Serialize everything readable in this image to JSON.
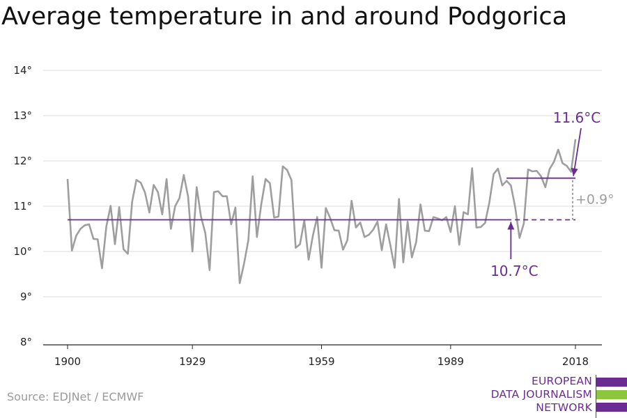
{
  "chart_data": {
    "type": "line",
    "title": "Average temperature in and around Podgorica",
    "xlabel": "",
    "ylabel": "",
    "xlim": [
      1900,
      2018
    ],
    "ylim": [
      8,
      14
    ],
    "x_ticks": [
      1900,
      1929,
      1959,
      1989,
      2018
    ],
    "y_ticks": [
      "8°",
      "9°",
      "10°",
      "11°",
      "12°",
      "13°",
      "14°"
    ],
    "y_tick_values": [
      8,
      9,
      10,
      11,
      12,
      13,
      14
    ],
    "grid": true,
    "series": [
      {
        "color": "#9e9e9e",
        "x": [
          1900,
          1901,
          1902,
          1903,
          1904,
          1905,
          1906,
          1907,
          1908,
          1909,
          1910,
          1911,
          1912,
          1913,
          1914,
          1915,
          1916,
          1917,
          1918,
          1919,
          1920,
          1921,
          1922,
          1923,
          1924,
          1925,
          1926,
          1927,
          1928,
          1929,
          1930,
          1931,
          1932,
          1933,
          1934,
          1935,
          1936,
          1937,
          1938,
          1939,
          1940,
          1941,
          1942,
          1943,
          1944,
          1945,
          1946,
          1947,
          1948,
          1949,
          1950,
          1951,
          1952,
          1953,
          1954,
          1955,
          1956,
          1957,
          1958,
          1959,
          1960,
          1961,
          1962,
          1963,
          1964,
          1965,
          1966,
          1967,
          1968,
          1969,
          1970,
          1971,
          1972,
          1973,
          1974,
          1975,
          1976,
          1977,
          1978,
          1979,
          1980,
          1981,
          1982,
          1983,
          1984,
          1985,
          1986,
          1987,
          1988,
          1989,
          1990,
          1991,
          1992,
          1993,
          1994,
          1995,
          1996,
          1997,
          1998,
          1999,
          2000,
          2001,
          2002,
          2003,
          2004,
          2005,
          2006,
          2007,
          2008,
          2009,
          2010,
          2011,
          2012,
          2013,
          2014,
          2015,
          2016,
          2017,
          2018
        ],
        "values": [
          11.6,
          10.02,
          10.35,
          10.5,
          10.58,
          10.6,
          10.28,
          10.27,
          9.63,
          10.55,
          11.01,
          10.16,
          10.98,
          10.05,
          9.95,
          11.1,
          11.58,
          11.52,
          11.3,
          10.86,
          11.47,
          11.31,
          10.82,
          11.6,
          10.5,
          11.0,
          11.18,
          11.69,
          11.21,
          10.0,
          11.42,
          10.77,
          10.41,
          9.59,
          11.31,
          11.33,
          11.22,
          11.22,
          10.6,
          10.97,
          9.3,
          9.73,
          10.25,
          11.66,
          10.32,
          11.04,
          11.6,
          11.51,
          10.75,
          10.77,
          11.88,
          11.8,
          11.58,
          10.08,
          10.16,
          10.69,
          9.82,
          10.35,
          10.76,
          9.64,
          10.96,
          10.74,
          10.47,
          10.46,
          10.04,
          10.25,
          11.12,
          10.53,
          10.64,
          10.32,
          10.37,
          10.48,
          10.66,
          10.03,
          10.6,
          10.14,
          9.64,
          11.16,
          9.76,
          10.66,
          9.87,
          10.21,
          11.04,
          10.46,
          10.45,
          10.76,
          10.73,
          10.69,
          10.76,
          10.43,
          11.0,
          10.15,
          10.87,
          10.82,
          11.84,
          10.53,
          10.54,
          10.63,
          11.08,
          11.71,
          11.83,
          11.46,
          11.56,
          11.46,
          10.98,
          10.3,
          10.62,
          11.81,
          11.77,
          11.78,
          11.66,
          11.42,
          11.82,
          11.98,
          12.25,
          11.95,
          11.89,
          11.76,
          12.48
        ]
      }
    ],
    "reference_lines": [
      {
        "label": "10.7°C",
        "value": 10.7,
        "from": 1900,
        "to": 2018,
        "color": "#6a2c91"
      },
      {
        "label": "11.6°C",
        "value": 11.62,
        "from": 2002,
        "to": 2018,
        "color": "#6a2c91"
      }
    ],
    "difference_label": "+0.9°",
    "difference_color": "#9e9e9e"
  },
  "source": "Source: EDJNet / ECMWF",
  "logo": {
    "lines": [
      "EUROPEAN",
      "DATA JOURNALISM",
      "NETWORK"
    ],
    "bar_colors": [
      "#6a2c91",
      "#8cc63f",
      "#6a2c91"
    ]
  }
}
